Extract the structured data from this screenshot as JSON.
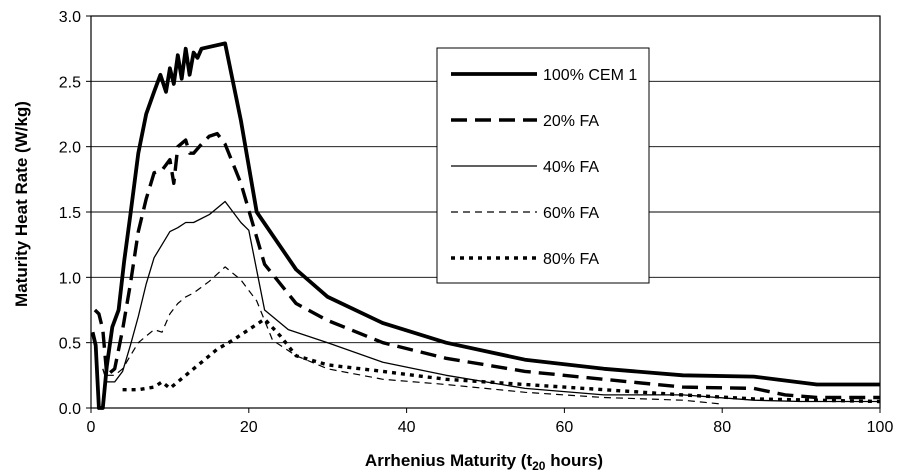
{
  "chart_data": {
    "type": "line",
    "xlabel": "Arrhenius Maturity (t",
    "xlabel_sub": "20",
    "xlabel_suffix": " hours)",
    "ylabel": "Maturity Heat Rate (W/kg)",
    "xlim": [
      0,
      100
    ],
    "ylim": [
      0,
      3.0
    ],
    "x_ticks": [
      0,
      20,
      40,
      60,
      80,
      100
    ],
    "x_tick_labels": [
      "0",
      "20",
      "40",
      "60",
      "80",
      "100"
    ],
    "y_ticks": [
      0,
      0.5,
      1.0,
      1.5,
      2.0,
      2.5,
      3.0
    ],
    "y_tick_labels": [
      "0.0",
      "0.5",
      "1.0",
      "1.5",
      "2.0",
      "2.5",
      "3.0"
    ],
    "grid": "horizontal",
    "legend_position": "top-right",
    "series": [
      {
        "name": "100% CEM 1",
        "style": "thick-solid",
        "x": [
          0.2,
          0.6,
          1.0,
          1.5,
          2.0,
          2.7,
          3.5,
          4.2,
          5.0,
          6.0,
          7.0,
          8.0,
          8.8,
          9.5,
          10.0,
          10.5,
          11.0,
          11.5,
          12.0,
          12.5,
          13.0,
          13.5,
          14.0,
          17.0,
          19.0,
          21.0,
          26.0,
          30.0,
          37.0,
          45.0,
          55.0,
          65.0,
          75.0,
          84.0,
          92.0,
          100.0
        ],
        "y": [
          0.58,
          0.48,
          0.0,
          0.0,
          0.32,
          0.62,
          0.75,
          1.12,
          1.48,
          1.95,
          2.25,
          2.42,
          2.55,
          2.42,
          2.6,
          2.48,
          2.7,
          2.52,
          2.75,
          2.55,
          2.72,
          2.68,
          2.75,
          2.79,
          2.2,
          1.5,
          1.06,
          0.85,
          0.65,
          0.5,
          0.37,
          0.3,
          0.25,
          0.24,
          0.18,
          0.18
        ]
      },
      {
        "name": "20% FA",
        "style": "thick-dash",
        "x": [
          0.5,
          1.0,
          1.5,
          2.0,
          3.0,
          4.0,
          5.0,
          6.0,
          7.0,
          8.0,
          9.0,
          10.0,
          10.5,
          11.0,
          12.0,
          12.5,
          13.0,
          14.0,
          15.0,
          16.0,
          17.0,
          19.0,
          22.0,
          26.0,
          30.0,
          37.0,
          45.0,
          55.0,
          65.0,
          75.0,
          84.0,
          88.0,
          92.0,
          100.0
        ],
        "y": [
          0.75,
          0.72,
          0.6,
          0.25,
          0.3,
          0.6,
          0.95,
          1.35,
          1.6,
          1.8,
          1.82,
          1.9,
          1.72,
          2.0,
          2.05,
          1.95,
          1.95,
          2.02,
          2.08,
          2.1,
          2.02,
          1.72,
          1.1,
          0.8,
          0.67,
          0.5,
          0.38,
          0.28,
          0.22,
          0.16,
          0.15,
          0.1,
          0.08,
          0.08
        ]
      },
      {
        "name": "40% FA",
        "style": "thin-solid",
        "x": [
          1.5,
          2.0,
          3.0,
          4.0,
          5.0,
          6.0,
          7.0,
          8.0,
          9.0,
          10.0,
          11.0,
          12.0,
          13.0,
          15.0,
          17.0,
          19.0,
          20.0,
          22.0,
          25.0,
          30.0,
          37.0,
          45.0,
          55.0,
          65.0,
          75.0,
          84.0,
          90.0,
          100.0
        ],
        "y": [
          0.3,
          0.2,
          0.2,
          0.28,
          0.48,
          0.7,
          0.95,
          1.15,
          1.25,
          1.35,
          1.38,
          1.42,
          1.42,
          1.48,
          1.58,
          1.42,
          1.36,
          0.75,
          0.6,
          0.5,
          0.35,
          0.25,
          0.15,
          0.1,
          0.1,
          0.06,
          0.05,
          0.05
        ]
      },
      {
        "name": "60% FA",
        "style": "thin-dash",
        "x": [
          2.0,
          3.0,
          4.0,
          5.0,
          6.0,
          7.0,
          8.0,
          9.0,
          10.0,
          11.0,
          12.0,
          13.0,
          15.0,
          17.0,
          19.0,
          21.0,
          23.0,
          26.0,
          30.0,
          37.0,
          45.0,
          55.0,
          65.0,
          75.0,
          80.0
        ],
        "y": [
          0.25,
          0.25,
          0.3,
          0.4,
          0.5,
          0.55,
          0.6,
          0.58,
          0.72,
          0.8,
          0.85,
          0.88,
          0.97,
          1.08,
          0.98,
          0.82,
          0.52,
          0.4,
          0.3,
          0.22,
          0.18,
          0.12,
          0.08,
          0.06,
          0.03
        ]
      },
      {
        "name": "80% FA",
        "style": "thick-dot",
        "x": [
          4.0,
          6.0,
          8.0,
          9.0,
          10.0,
          12.0,
          14.0,
          16.0,
          18.0,
          20.0,
          22.0,
          24.0,
          26.0,
          30.0,
          37.0,
          45.0,
          55.0,
          65.0,
          75.0,
          84.0,
          100.0
        ],
        "y": [
          0.14,
          0.14,
          0.16,
          0.2,
          0.15,
          0.25,
          0.35,
          0.45,
          0.52,
          0.6,
          0.68,
          0.55,
          0.4,
          0.33,
          0.28,
          0.22,
          0.18,
          0.14,
          0.1,
          0.07,
          0.05
        ]
      }
    ]
  }
}
